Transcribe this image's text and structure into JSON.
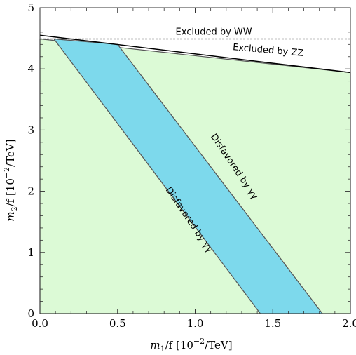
{
  "chart_data": {
    "type": "area",
    "xlabel_prefix": "m",
    "xlabel_sub": "1",
    "xlabel_suffix": "/f  [10",
    "xlabel_sup": "−2",
    "xlabel_end": "/TeV]",
    "ylabel_prefix": "m",
    "ylabel_sub": "2",
    "ylabel_suffix": "/f  [10",
    "ylabel_sup": "−2",
    "ylabel_end": "/TeV]",
    "xlim": [
      0.0,
      2.0
    ],
    "ylim": [
      0.0,
      5.0
    ],
    "xticks": [
      0.0,
      0.5,
      1.0,
      1.5,
      2.0
    ],
    "xtick_labels": [
      "0.0",
      "0.5",
      "1.0",
      "1.5",
      "2.0"
    ],
    "yticks": [
      0,
      1,
      2,
      3,
      4,
      5
    ],
    "ytick_labels": [
      "0",
      "1",
      "2",
      "3",
      "4",
      "5"
    ],
    "grid": false,
    "allowed_region": {
      "color": "#dcfad6",
      "polygon": [
        [
          0.0,
          0.0
        ],
        [
          2.0,
          0.0
        ],
        [
          2.0,
          3.94
        ],
        [
          0.0,
          4.49
        ]
      ]
    },
    "disfavored_band": {
      "color": "#7dd9ec",
      "polygon": [
        [
          0.09,
          4.49
        ],
        [
          0.5,
          4.4
        ],
        [
          1.82,
          0.0
        ],
        [
          1.42,
          0.0
        ]
      ]
    },
    "ww_bound": {
      "style": "dashed",
      "y": 4.49,
      "x_range": [
        0.0,
        2.0
      ]
    },
    "zz_bound": {
      "style": "solid",
      "points": [
        [
          0.0,
          4.55
        ],
        [
          2.0,
          3.94
        ]
      ]
    },
    "annotations": [
      {
        "text": "Excluded by WW",
        "x": 1.12,
        "y": 4.6,
        "angle": 0
      },
      {
        "text": "Excluded by ZZ",
        "x": 1.47,
        "y": 4.3,
        "angle": 5
      },
      {
        "text": "Disfavored by γγ",
        "x": 1.25,
        "y": 2.4,
        "angle": 56
      },
      {
        "text": "Disfavored by γγ",
        "x": 0.96,
        "y": 1.53,
        "angle": 56
      }
    ]
  }
}
